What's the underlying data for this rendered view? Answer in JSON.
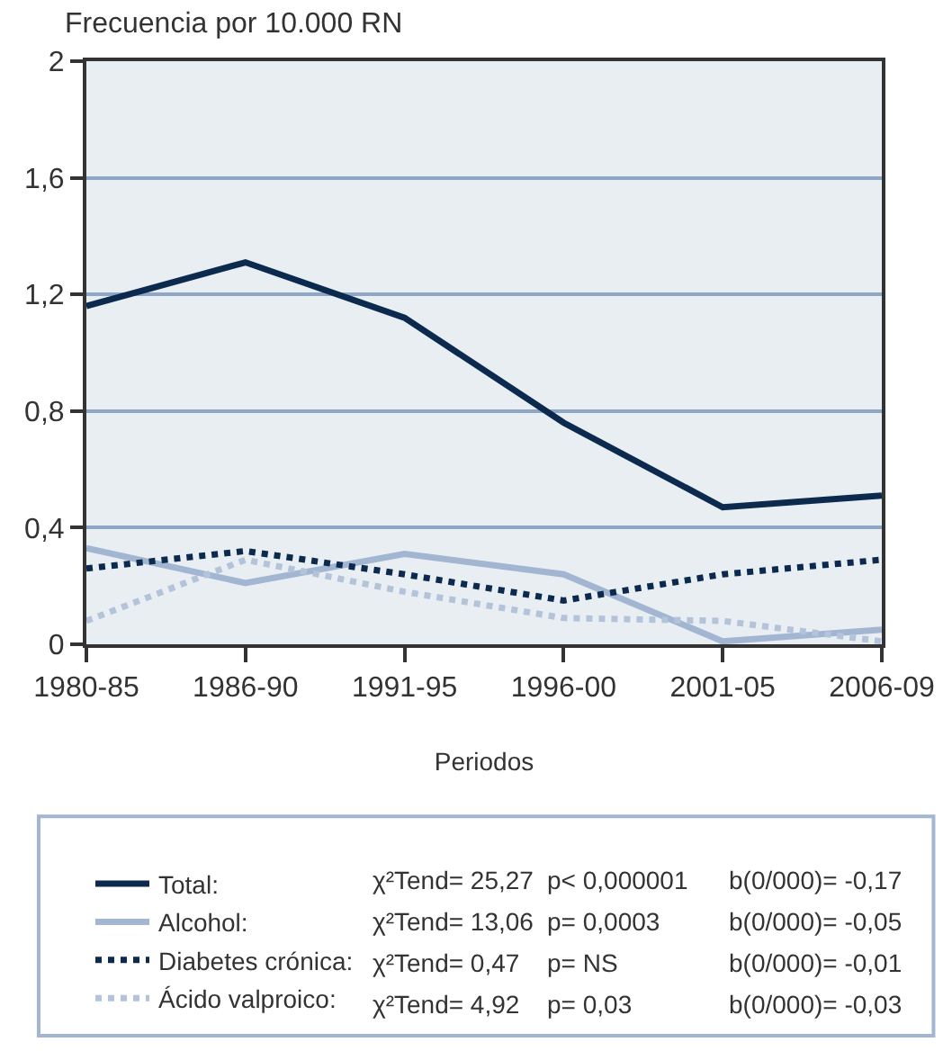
{
  "chart_data": {
    "type": "line",
    "ylabel": "Frecuencia por 10.000 RN",
    "xlabel": "Periodos",
    "categories": [
      "1980-85",
      "1986-90",
      "1991-95",
      "1996-00",
      "2001-05",
      "2006-09"
    ],
    "series": [
      {
        "name": "Total:",
        "color": "#0b2a4e",
        "line_style": "solid",
        "values": [
          1.16,
          1.31,
          1.12,
          0.76,
          0.47,
          0.51
        ]
      },
      {
        "name": "Alcohol:",
        "color": "#a2b6d2",
        "line_style": "solid",
        "values": [
          0.33,
          0.21,
          0.31,
          0.24,
          0.01,
          0.05
        ]
      },
      {
        "name": "Diabetes crónica:",
        "color": "#0b2a4e",
        "line_style": "dotted",
        "values": [
          0.26,
          0.32,
          0.24,
          0.15,
          0.24,
          0.29
        ]
      },
      {
        "name": "Ácido valproico:",
        "color": "#b3c3da",
        "line_style": "dotted",
        "values": [
          0.08,
          0.29,
          0.18,
          0.09,
          0.08,
          0.01
        ]
      }
    ],
    "ylim": [
      0,
      2
    ],
    "yticks": [
      0,
      {
        "value": 0.4,
        "label": "0,4"
      },
      {
        "value": 0.8,
        "label": "0,8"
      },
      {
        "value": 1.2,
        "label": "1,2"
      },
      {
        "value": 1.6,
        "label": "1,6"
      },
      2
    ],
    "grid": "y",
    "legend": "bottom",
    "marker": "none",
    "annotations": [
      "χ²Tend= 25,27",
      "p< 0,000001",
      "b(0/000)= -0,17",
      "χ²Tend= 13,06",
      "p= 0,0003",
      "b(0/000)= -0,05",
      "χ²Tend= 0,47",
      "p= NS",
      "b(0/000)= -0,01",
      "χ²Tend= 4,92",
      "p= 0,03",
      "b(0/000)= -0,03"
    ]
  }
}
